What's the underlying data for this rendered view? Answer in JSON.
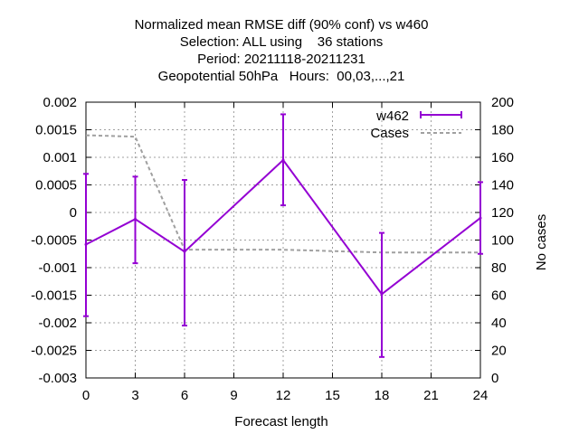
{
  "chart_data": {
    "type": "line",
    "title_lines": [
      "Normalized mean RMSE diff (90% conf) vs w460",
      "Selection: ALL using    36 stations",
      "Period: 20211118-20211231",
      "Geopotential 50hPa   Hours:  00,03,...,21"
    ],
    "xlabel": "Forecast length",
    "ylabel_right": "No cases",
    "x_ticks": [
      0,
      3,
      6,
      9,
      12,
      15,
      18,
      21,
      24
    ],
    "y_ticks": [
      0.002,
      0.0015,
      0.001,
      0.0005,
      0,
      -0.0005,
      -0.001,
      -0.0015,
      -0.002,
      -0.0025,
      -0.003
    ],
    "y_tick_labels": [
      "0.002",
      "0.0015",
      "0.001",
      "0.0005",
      "0",
      "-0.0005",
      "-0.001",
      "-0.0015",
      "-0.002",
      "-0.0025",
      "-0.003"
    ],
    "y2_ticks": [
      200,
      180,
      160,
      140,
      120,
      100,
      80,
      60,
      40,
      20,
      0
    ],
    "xlim": [
      0,
      24
    ],
    "ylim": [
      -0.003,
      0.002
    ],
    "y2lim": [
      0,
      200
    ],
    "grid": true,
    "legend_position": "top-right",
    "series": [
      {
        "name": "w462",
        "axis": "left",
        "style": "line-errorbars",
        "color": "#9400d3",
        "x": [
          0,
          3,
          6,
          12,
          18,
          24
        ],
        "y": [
          -0.00058,
          -0.00012,
          -0.00071,
          0.00095,
          -0.00148,
          -0.0001
        ],
        "err_low": [
          -0.00188,
          -0.00092,
          -0.00205,
          0.00013,
          -0.00262,
          -0.00075
        ],
        "err_high": [
          0.0007,
          0.00065,
          0.00059,
          0.00178,
          -0.00037,
          0.00055
        ]
      },
      {
        "name": "Cases",
        "axis": "right",
        "style": "dashed",
        "color": "#a0a0a0",
        "x": [
          0,
          3,
          6,
          12,
          18,
          24
        ],
        "y": [
          176,
          175,
          93,
          93,
          91,
          91
        ]
      }
    ]
  }
}
